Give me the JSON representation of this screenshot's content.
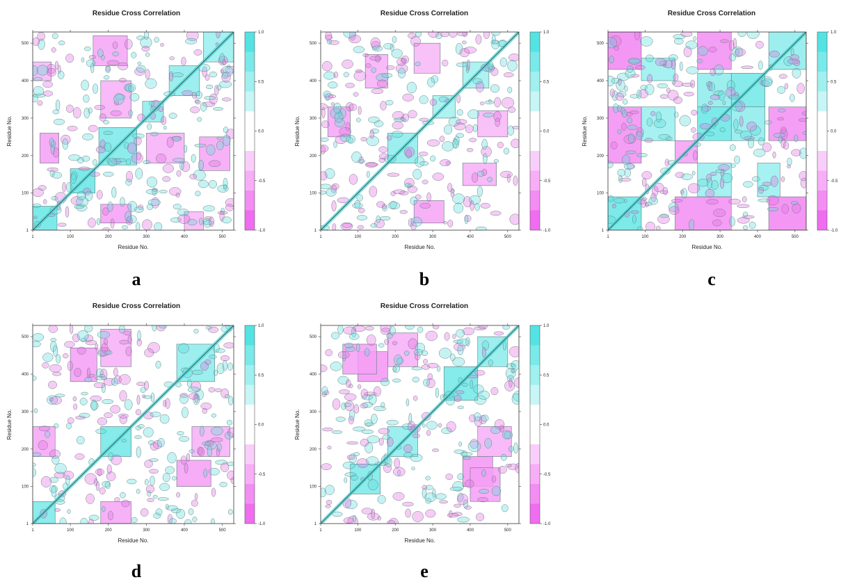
{
  "chart_data": [
    {
      "type": "heatmap",
      "panel_label": "a",
      "title": "Residue Cross Correlation",
      "xlabel": "Residue No.",
      "ylabel": "Residue No.",
      "x_ticks": [
        "1",
        "100",
        "200",
        "300",
        "400",
        "500"
      ],
      "y_ticks": [
        "1",
        "100",
        "200",
        "300",
        "400",
        "500"
      ],
      "x_range": [
        1,
        530
      ],
      "y_range": [
        1,
        530
      ],
      "colorbar_ticks": [
        "1.0",
        "0.5",
        "0.0",
        "-0.5",
        "-1.0"
      ],
      "colorbar_range": [
        -1.0,
        1.0
      ],
      "blocks": [
        {
          "x": [
            1,
            65
          ],
          "y": [
            1,
            65
          ],
          "value": 0.8
        },
        {
          "x": [
            100,
            165
          ],
          "y": [
            100,
            165
          ],
          "value": 0.8
        },
        {
          "x": [
            175,
            275
          ],
          "y": [
            175,
            275
          ],
          "value": 0.7
        },
        {
          "x": [
            290,
            345
          ],
          "y": [
            290,
            345
          ],
          "value": 0.6
        },
        {
          "x": [
            360,
            440
          ],
          "y": [
            360,
            440
          ],
          "value": 0.6
        },
        {
          "x": [
            450,
            530
          ],
          "y": [
            450,
            530
          ],
          "value": 0.55
        },
        {
          "x": [
            20,
            70
          ],
          "y": [
            180,
            260
          ],
          "value": -0.6
        },
        {
          "x": [
            180,
            260
          ],
          "y": [
            20,
            70
          ],
          "value": -0.6
        },
        {
          "x": [
            160,
            250
          ],
          "y": [
            440,
            520
          ],
          "value": -0.55
        },
        {
          "x": [
            440,
            520
          ],
          "y": [
            160,
            250
          ],
          "value": -0.55
        },
        {
          "x": [
            300,
            400
          ],
          "y": [
            180,
            260
          ],
          "value": -0.5
        },
        {
          "x": [
            180,
            260
          ],
          "y": [
            300,
            400
          ],
          "value": -0.5
        },
        {
          "x": [
            1,
            50
          ],
          "y": [
            400,
            450
          ],
          "value": -0.45
        },
        {
          "x": [
            400,
            450
          ],
          "y": [
            1,
            50
          ],
          "value": -0.45
        }
      ]
    },
    {
      "type": "heatmap",
      "panel_label": "b",
      "title": "Residue Cross Correlation",
      "xlabel": "Residue No.",
      "ylabel": "Residue No.",
      "x_ticks": [
        "1",
        "100",
        "200",
        "300",
        "400",
        "500"
      ],
      "y_ticks": [
        "1",
        "100",
        "200",
        "300",
        "400",
        "500"
      ],
      "x_range": [
        1,
        530
      ],
      "y_range": [
        1,
        530
      ],
      "colorbar_ticks": [
        "1.0",
        "0.5",
        "0.0",
        "-0.5",
        "-1.0"
      ],
      "colorbar_range": [
        -1.0,
        1.0
      ],
      "blocks": [
        {
          "x": [
            180,
            260
          ],
          "y": [
            180,
            260
          ],
          "value": 0.6
        },
        {
          "x": [
            300,
            360
          ],
          "y": [
            300,
            360
          ],
          "value": 0.5
        },
        {
          "x": [
            380,
            450
          ],
          "y": [
            380,
            450
          ],
          "value": 0.5
        },
        {
          "x": [
            20,
            80
          ],
          "y": [
            250,
            330
          ],
          "value": -0.55
        },
        {
          "x": [
            250,
            330
          ],
          "y": [
            20,
            80
          ],
          "value": -0.55
        },
        {
          "x": [
            120,
            180
          ],
          "y": [
            380,
            470
          ],
          "value": -0.5
        },
        {
          "x": [
            380,
            470
          ],
          "y": [
            120,
            180
          ],
          "value": -0.5
        },
        {
          "x": [
            420,
            500
          ],
          "y": [
            250,
            320
          ],
          "value": -0.45
        },
        {
          "x": [
            250,
            320
          ],
          "y": [
            420,
            500
          ],
          "value": -0.45
        }
      ]
    },
    {
      "type": "heatmap",
      "panel_label": "c",
      "title": "Residue Cross Correlation",
      "xlabel": "Residue No.",
      "ylabel": "Residue No.",
      "x_ticks": [
        "1",
        "100",
        "200",
        "300",
        "400",
        "500"
      ],
      "y_ticks": [
        "1",
        "100",
        "200",
        "300",
        "400",
        "500"
      ],
      "x_range": [
        1,
        530
      ],
      "y_range": [
        1,
        530
      ],
      "colorbar_ticks": [
        "1.0",
        "0.5",
        "0.0",
        "-0.5",
        "-1.0"
      ],
      "colorbar_range": [
        -1.0,
        1.0
      ],
      "blocks": [
        {
          "x": [
            1,
            90
          ],
          "y": [
            1,
            90
          ],
          "value": 0.8
        },
        {
          "x": [
            240,
            330
          ],
          "y": [
            240,
            330
          ],
          "value": 0.8
        },
        {
          "x": [
            330,
            420
          ],
          "y": [
            330,
            420
          ],
          "value": 0.75
        },
        {
          "x": [
            240,
            330
          ],
          "y": [
            330,
            420
          ],
          "value": 0.6
        },
        {
          "x": [
            330,
            420
          ],
          "y": [
            240,
            330
          ],
          "value": 0.6
        },
        {
          "x": [
            90,
            180
          ],
          "y": [
            240,
            330
          ],
          "value": 0.55
        },
        {
          "x": [
            240,
            330
          ],
          "y": [
            90,
            180
          ],
          "value": 0.55
        },
        {
          "x": [
            90,
            180
          ],
          "y": [
            400,
            460
          ],
          "value": 0.55
        },
        {
          "x": [
            400,
            460
          ],
          "y": [
            90,
            180
          ],
          "value": 0.55
        },
        {
          "x": [
            1,
            90
          ],
          "y": [
            180,
            330
          ],
          "value": -0.7
        },
        {
          "x": [
            180,
            330
          ],
          "y": [
            1,
            90
          ],
          "value": -0.7
        },
        {
          "x": [
            430,
            530
          ],
          "y": [
            240,
            330
          ],
          "value": -0.7
        },
        {
          "x": [
            240,
            330
          ],
          "y": [
            430,
            530
          ],
          "value": -0.7
        },
        {
          "x": [
            180,
            240
          ],
          "y": [
            180,
            240
          ],
          "value": -0.6
        },
        {
          "x": [
            430,
            530
          ],
          "y": [
            1,
            90
          ],
          "value": -0.75
        },
        {
          "x": [
            1,
            90
          ],
          "y": [
            430,
            530
          ],
          "value": -0.75
        },
        {
          "x": [
            430,
            530
          ],
          "y": [
            430,
            530
          ],
          "value": 0.6
        }
      ]
    },
    {
      "type": "heatmap",
      "panel_label": "d",
      "title": "Residue Cross Correlation",
      "xlabel": "Residue No.",
      "ylabel": "Residue No.",
      "x_ticks": [
        "1",
        "100",
        "200",
        "300",
        "400",
        "500"
      ],
      "y_ticks": [
        "1",
        "100",
        "200",
        "300",
        "400",
        "500"
      ],
      "x_range": [
        1,
        530
      ],
      "y_range": [
        1,
        530
      ],
      "colorbar_ticks": [
        "1.0",
        "0.5",
        "0.0",
        "-0.5",
        "-1.0"
      ],
      "colorbar_range": [
        -1.0,
        1.0
      ],
      "blocks": [
        {
          "x": [
            1,
            60
          ],
          "y": [
            1,
            60
          ],
          "value": 0.7
        },
        {
          "x": [
            180,
            260
          ],
          "y": [
            180,
            260
          ],
          "value": 0.75
        },
        {
          "x": [
            380,
            480
          ],
          "y": [
            380,
            480
          ],
          "value": 0.6
        },
        {
          "x": [
            100,
            170
          ],
          "y": [
            380,
            470
          ],
          "value": -0.6
        },
        {
          "x": [
            380,
            470
          ],
          "y": [
            100,
            170
          ],
          "value": -0.6
        },
        {
          "x": [
            1,
            60
          ],
          "y": [
            180,
            260
          ],
          "value": -0.55
        },
        {
          "x": [
            180,
            260
          ],
          "y": [
            1,
            60
          ],
          "value": -0.55
        },
        {
          "x": [
            420,
            520
          ],
          "y": [
            180,
            260
          ],
          "value": -0.5
        },
        {
          "x": [
            180,
            260
          ],
          "y": [
            420,
            520
          ],
          "value": -0.5
        }
      ]
    },
    {
      "type": "heatmap",
      "panel_label": "e",
      "title": "Residue Cross Correlation",
      "xlabel": "Residue No.",
      "ylabel": "Residue No.",
      "x_ticks": [
        "1",
        "100",
        "200",
        "300",
        "400",
        "500"
      ],
      "y_ticks": [
        "1",
        "100",
        "200",
        "300",
        "400",
        "500"
      ],
      "x_range": [
        1,
        530
      ],
      "y_range": [
        1,
        530
      ],
      "colorbar_ticks": [
        "1.0",
        "0.5",
        "0.0",
        "-0.5",
        "-1.0"
      ],
      "colorbar_range": [
        -1.0,
        1.0
      ],
      "blocks": [
        {
          "x": [
            80,
            160
          ],
          "y": [
            80,
            160
          ],
          "value": 0.7
        },
        {
          "x": [
            180,
            260
          ],
          "y": [
            180,
            260
          ],
          "value": 0.6
        },
        {
          "x": [
            330,
            420
          ],
          "y": [
            330,
            420
          ],
          "value": 0.75
        },
        {
          "x": [
            420,
            500
          ],
          "y": [
            420,
            500
          ],
          "value": 0.6
        },
        {
          "x": [
            100,
            180
          ],
          "y": [
            380,
            460
          ],
          "value": -0.65
        },
        {
          "x": [
            380,
            460
          ],
          "y": [
            100,
            180
          ],
          "value": -0.65
        },
        {
          "x": [
            400,
            480
          ],
          "y": [
            60,
            150
          ],
          "value": -0.6
        },
        {
          "x": [
            60,
            150
          ],
          "y": [
            400,
            480
          ],
          "value": -0.6
        },
        {
          "x": [
            180,
            260
          ],
          "y": [
            420,
            510
          ],
          "value": -0.5
        },
        {
          "x": [
            420,
            510
          ],
          "y": [
            180,
            260
          ],
          "value": -0.5
        }
      ]
    }
  ]
}
